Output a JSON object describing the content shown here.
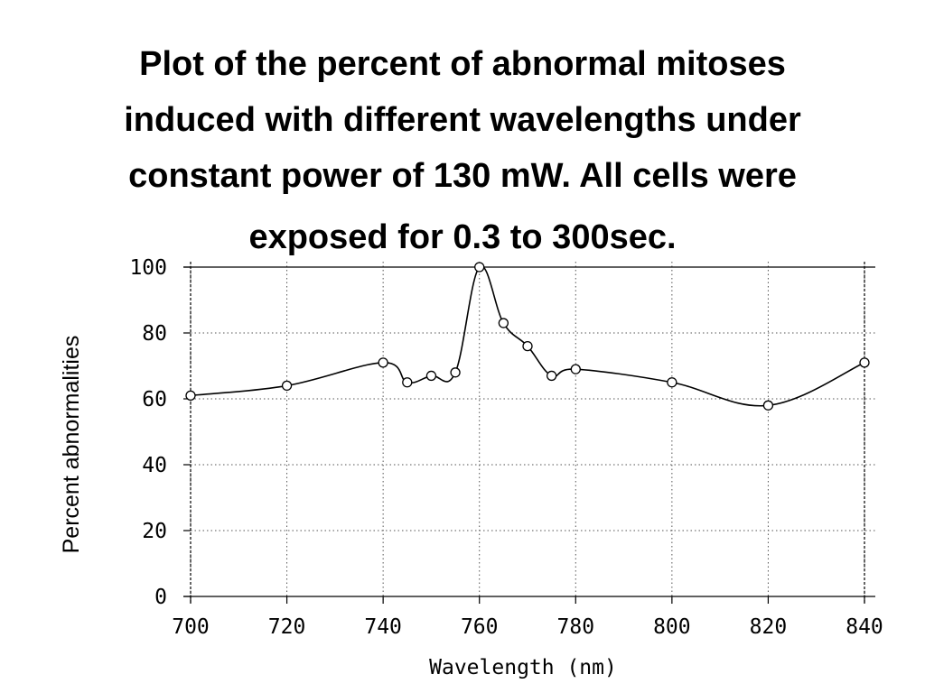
{
  "slide": {
    "title_lines": [
      "Plot of the percent of abnormal mitoses",
      "induced with different wavelengths under",
      "constant power of 130 mW. All cells were",
      "exposed for 0.3 to 300sec"
    ],
    "title_end": "."
  },
  "chart_data": {
    "type": "line",
    "title": "",
    "xlabel": "Wavelength  (nm)",
    "ylabel": "Percent  abnormalities",
    "xlim": [
      700,
      840
    ],
    "ylim": [
      0,
      100
    ],
    "xticks": [
      700,
      720,
      740,
      760,
      780,
      800,
      820,
      840
    ],
    "xtick_labels": [
      "700",
      "720",
      "740",
      "760",
      "780",
      "800",
      "820",
      "840"
    ],
    "yticks": [
      0,
      20,
      40,
      60,
      80,
      100
    ],
    "ytick_labels": [
      "0",
      "20",
      "40",
      "60",
      "80",
      "100"
    ],
    "grid": true,
    "grid_style": "dotted",
    "marker": "open-circle",
    "line_color": "#000000",
    "series": [
      {
        "x": [
          700,
          720,
          740,
          745,
          750,
          755,
          760,
          765,
          770,
          775,
          780,
          800,
          820,
          840
        ],
        "y": [
          61,
          64,
          71,
          65,
          67,
          68,
          100,
          83,
          76,
          67,
          69,
          65,
          58,
          71
        ]
      }
    ]
  }
}
